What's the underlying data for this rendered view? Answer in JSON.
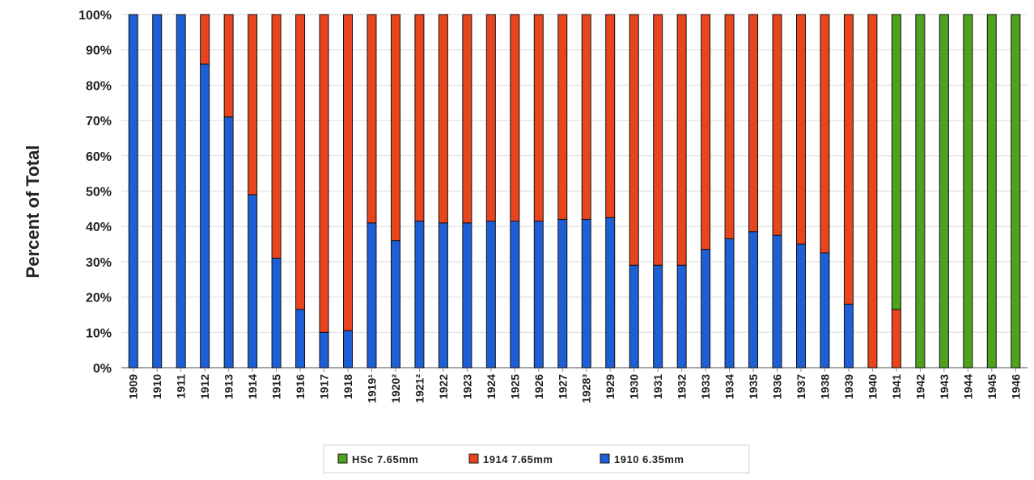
{
  "chart_data": {
    "type": "bar",
    "stacked": true,
    "percent_stacked": true,
    "ylabel": "Percent of Total",
    "xlabel": "",
    "ylim": [
      0,
      100
    ],
    "y_ticks": [
      "0%",
      "10%",
      "20%",
      "30%",
      "40%",
      "50%",
      "60%",
      "70%",
      "80%",
      "90%",
      "100%"
    ],
    "grid": true,
    "legend_position": "bottom",
    "categories": [
      "1909",
      "1910",
      "1911",
      "1912",
      "1913",
      "1914",
      "1915",
      "1916",
      "1917",
      "1918",
      "1919¹",
      "1920²",
      "1921²",
      "1922",
      "1923",
      "1924",
      "1925",
      "1926",
      "1927",
      "1928³",
      "1929",
      "1930",
      "1931",
      "1932",
      "1933",
      "1934",
      "1935",
      "1936",
      "1937",
      "1938",
      "1939",
      "1940",
      "1941",
      "1942",
      "1943",
      "1944",
      "1945",
      "1946"
    ],
    "series": [
      {
        "name": "1910 6.35mm",
        "color": "#1f5fd6",
        "values": [
          100,
          100,
          100,
          86,
          71,
          49,
          31,
          16.5,
          10,
          10.5,
          41,
          36,
          41.5,
          41,
          41,
          41.5,
          41.5,
          41.5,
          42,
          42,
          42.5,
          29,
          29,
          29,
          33.5,
          36.5,
          38.5,
          37.5,
          35,
          32.5,
          18,
          0,
          0,
          0,
          0,
          0,
          0,
          0
        ]
      },
      {
        "name": "1914 7.65mm",
        "color": "#e8441e",
        "values": [
          0,
          0,
          0,
          14,
          29,
          51,
          69,
          83.5,
          90,
          89.5,
          59,
          64,
          58.5,
          59,
          59,
          58.5,
          58.5,
          58.5,
          58,
          58,
          57.5,
          71,
          71,
          71,
          66.5,
          63.5,
          61.5,
          62.5,
          65,
          67.5,
          82,
          100,
          16.5,
          0,
          0,
          0,
          0,
          0
        ]
      },
      {
        "name": "HSc 7.65mm",
        "color": "#4ea21e",
        "values": [
          0,
          0,
          0,
          0,
          0,
          0,
          0,
          0,
          0,
          0,
          0,
          0,
          0,
          0,
          0,
          0,
          0,
          0,
          0,
          0,
          0,
          0,
          0,
          0,
          0,
          0,
          0,
          0,
          0,
          0,
          0,
          0,
          83.5,
          100,
          100,
          100,
          100,
          100
        ]
      }
    ],
    "legend_order": [
      "HSc 7.65mm",
      "1914 7.65mm",
      "1910 6.35mm"
    ]
  }
}
